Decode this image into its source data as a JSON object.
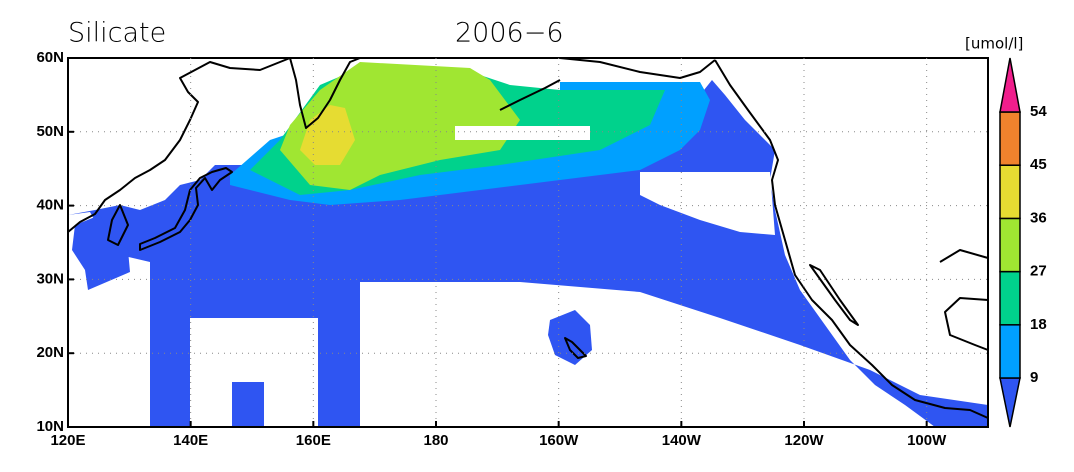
{
  "map": {
    "title": "Silicate",
    "subtitle": "2006−6",
    "unit": "[umol/l]",
    "lon_ticks": [
      "120E",
      "140E",
      "160E",
      "180",
      "160W",
      "140W",
      "120W",
      "100W"
    ],
    "lat_ticks": [
      "60N",
      "50N",
      "40N",
      "30N",
      "20N",
      "10N"
    ],
    "colorbar": {
      "levels": [
        9,
        18,
        27,
        36,
        45,
        54
      ],
      "colors": [
        "#2f55f2",
        "#00a0ff",
        "#00d28c",
        "#a0e632",
        "#e6dc32",
        "#f0822d",
        "#f01e8c"
      ]
    }
  }
}
